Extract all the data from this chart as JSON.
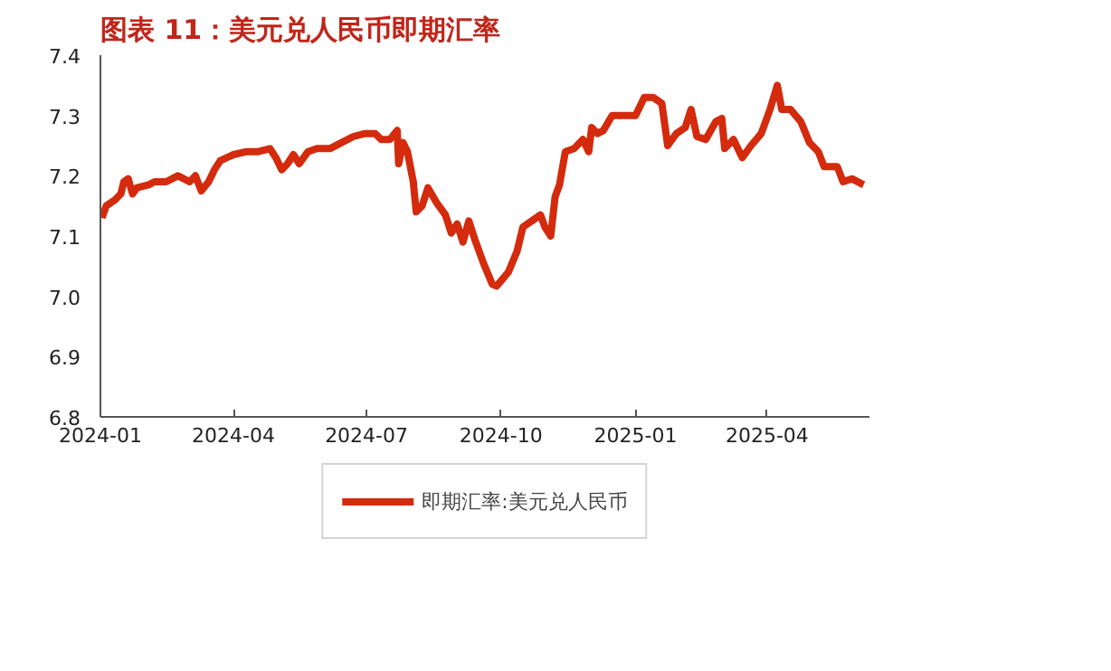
{
  "chart_data": {
    "type": "line",
    "title": "图表 11：美元兑人民币即期汇率",
    "xlim": [
      "2024-01-01",
      "2025-06-10"
    ],
    "xticks": [
      "2024-01",
      "2024-04",
      "2024-07",
      "2024-10",
      "2025-01",
      "2025-04"
    ],
    "ylim": [
      6.8,
      7.4
    ],
    "yticks": [
      6.8,
      6.9,
      {
        "value": 7.0,
        "label": "7.0"
      },
      7.1,
      7.2,
      7.3,
      7.4
    ],
    "grid": false,
    "legend": "bottom",
    "series": [
      {
        "name": "即期汇率:美元兑人民币",
        "color": "#d42a0d",
        "x": [
          "2024-01-02",
          "2024-01-05",
          "2024-01-11",
          "2024-01-15",
          "2024-01-17",
          "2024-01-20",
          "2024-01-23",
          "2024-01-26",
          "2024-02-03",
          "2024-02-07",
          "2024-02-15",
          "2024-02-23",
          "2024-03-02",
          "2024-03-06",
          "2024-03-10",
          "2024-03-15",
          "2024-03-19",
          "2024-03-23",
          "2024-04-01",
          "2024-04-10",
          "2024-04-18",
          "2024-04-26",
          "2024-04-30",
          "2024-05-04",
          "2024-05-08",
          "2024-05-12",
          "2024-05-16",
          "2024-05-22",
          "2024-05-28",
          "2024-06-06",
          "2024-06-14",
          "2024-06-22",
          "2024-06-30",
          "2024-07-07",
          "2024-07-11",
          "2024-07-17",
          "2024-07-22",
          "2024-07-23",
          "2024-07-26",
          "2024-07-29",
          "2024-08-02",
          "2024-08-04",
          "2024-08-08",
          "2024-08-12",
          "2024-08-18",
          "2024-08-24",
          "2024-08-28",
          "2024-09-01",
          "2024-09-05",
          "2024-09-09",
          "2024-09-13",
          "2024-09-19",
          "2024-09-25",
          "2024-09-28",
          "2024-10-06",
          "2024-10-12",
          "2024-10-16",
          "2024-10-22",
          "2024-10-28",
          "2024-10-31",
          "2024-11-04",
          "2024-11-07",
          "2024-11-10",
          "2024-11-14",
          "2024-11-20",
          "2024-11-26",
          "2024-11-30",
          "2024-12-02",
          "2024-12-06",
          "2024-12-10",
          "2024-12-16",
          "2024-12-23",
          "2025-01-01",
          "2025-01-07",
          "2025-01-13",
          "2025-01-19",
          "2025-01-23",
          "2025-01-29",
          "2025-02-04",
          "2025-02-08",
          "2025-02-12",
          "2025-02-18",
          "2025-02-25",
          "2025-03-01",
          "2025-03-03",
          "2025-03-09",
          "2025-03-15",
          "2025-03-21",
          "2025-03-28",
          "2025-04-03",
          "2025-04-08",
          "2025-04-11",
          "2025-04-17",
          "2025-04-24",
          "2025-04-30",
          "2025-05-06",
          "2025-05-10",
          "2025-05-15",
          "2025-05-19",
          "2025-05-23",
          "2025-05-29",
          "2025-06-06"
        ],
        "values": [
          7.13,
          7.15,
          7.16,
          7.17,
          7.19,
          7.195,
          7.17,
          7.18,
          7.185,
          7.19,
          7.19,
          7.2,
          7.19,
          7.2,
          7.175,
          7.19,
          7.21,
          7.225,
          7.235,
          7.24,
          7.24,
          7.245,
          7.23,
          7.21,
          7.22,
          7.235,
          7.22,
          7.24,
          7.245,
          7.245,
          7.255,
          7.265,
          7.27,
          7.27,
          7.26,
          7.26,
          7.275,
          7.22,
          7.255,
          7.24,
          7.19,
          7.14,
          7.15,
          7.18,
          7.155,
          7.135,
          7.105,
          7.12,
          7.09,
          7.125,
          7.095,
          7.055,
          7.02,
          7.017,
          7.04,
          7.075,
          7.115,
          7.125,
          7.135,
          7.115,
          7.1,
          7.165,
          7.185,
          7.24,
          7.245,
          7.26,
          7.24,
          7.28,
          7.27,
          7.275,
          7.3,
          7.3,
          7.3,
          7.33,
          7.33,
          7.32,
          7.25,
          7.27,
          7.28,
          7.31,
          7.265,
          7.26,
          7.29,
          7.295,
          7.245,
          7.26,
          7.23,
          7.25,
          7.27,
          7.31,
          7.35,
          7.31,
          7.31,
          7.29,
          7.255,
          7.24,
          7.215,
          7.215,
          7.215,
          7.19,
          7.195,
          7.185
        ]
      }
    ]
  }
}
